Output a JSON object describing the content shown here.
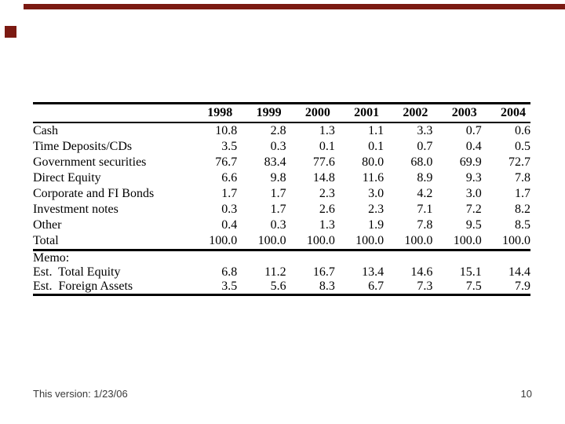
{
  "decor": {
    "color": "#7b1a12",
    "top_bar_name": "top-bar",
    "bullet_name": "bullet"
  },
  "table": {
    "columns": [
      "1998",
      "1999",
      "2000",
      "2001",
      "2002",
      "2003",
      "2004"
    ],
    "rows": [
      {
        "label": "Cash",
        "values": [
          "10.8",
          "2.8",
          "1.3",
          "1.1",
          "3.3",
          "0.7",
          "0.6"
        ]
      },
      {
        "label": "Time Deposits/CDs",
        "values": [
          "3.5",
          "0.3",
          "0.1",
          "0.1",
          "0.7",
          "0.4",
          "0.5"
        ]
      },
      {
        "label": "Government securities",
        "values": [
          "76.7",
          "83.4",
          "77.6",
          "80.0",
          "68.0",
          "69.9",
          "72.7"
        ]
      },
      {
        "label": "Direct Equity",
        "values": [
          "6.6",
          "9.8",
          "14.8",
          "11.6",
          "8.9",
          "9.3",
          "7.8"
        ]
      },
      {
        "label": "Corporate and FI Bonds",
        "values": [
          "1.7",
          "1.7",
          "2.3",
          "3.0",
          "4.2",
          "3.0",
          "1.7"
        ]
      },
      {
        "label": "Investment notes",
        "values": [
          "0.3",
          "1.7",
          "2.6",
          "2.3",
          "7.1",
          "7.2",
          "8.2"
        ]
      },
      {
        "label": "Other",
        "values": [
          "0.4",
          "0.3",
          "1.3",
          "1.9",
          "7.8",
          "9.5",
          "8.5"
        ]
      },
      {
        "label": "Total",
        "values": [
          "100.0",
          "100.0",
          "100.0",
          "100.0",
          "100.0",
          "100.0",
          "100.0"
        ],
        "section_end": true
      }
    ],
    "memo_label": "Memo:",
    "memo_rows": [
      {
        "label": "Est.  Total Equity",
        "values": [
          "6.8",
          "11.2",
          "16.7",
          "13.4",
          "14.6",
          "15.1",
          "14.4"
        ]
      },
      {
        "label": "Est.  Foreign Assets",
        "values": [
          "3.5",
          "5.6",
          "8.3",
          "6.7",
          "7.3",
          "7.5",
          "7.9"
        ]
      }
    ]
  },
  "footer": {
    "version_text": "This version: 1/23/06",
    "page_number": "10"
  }
}
